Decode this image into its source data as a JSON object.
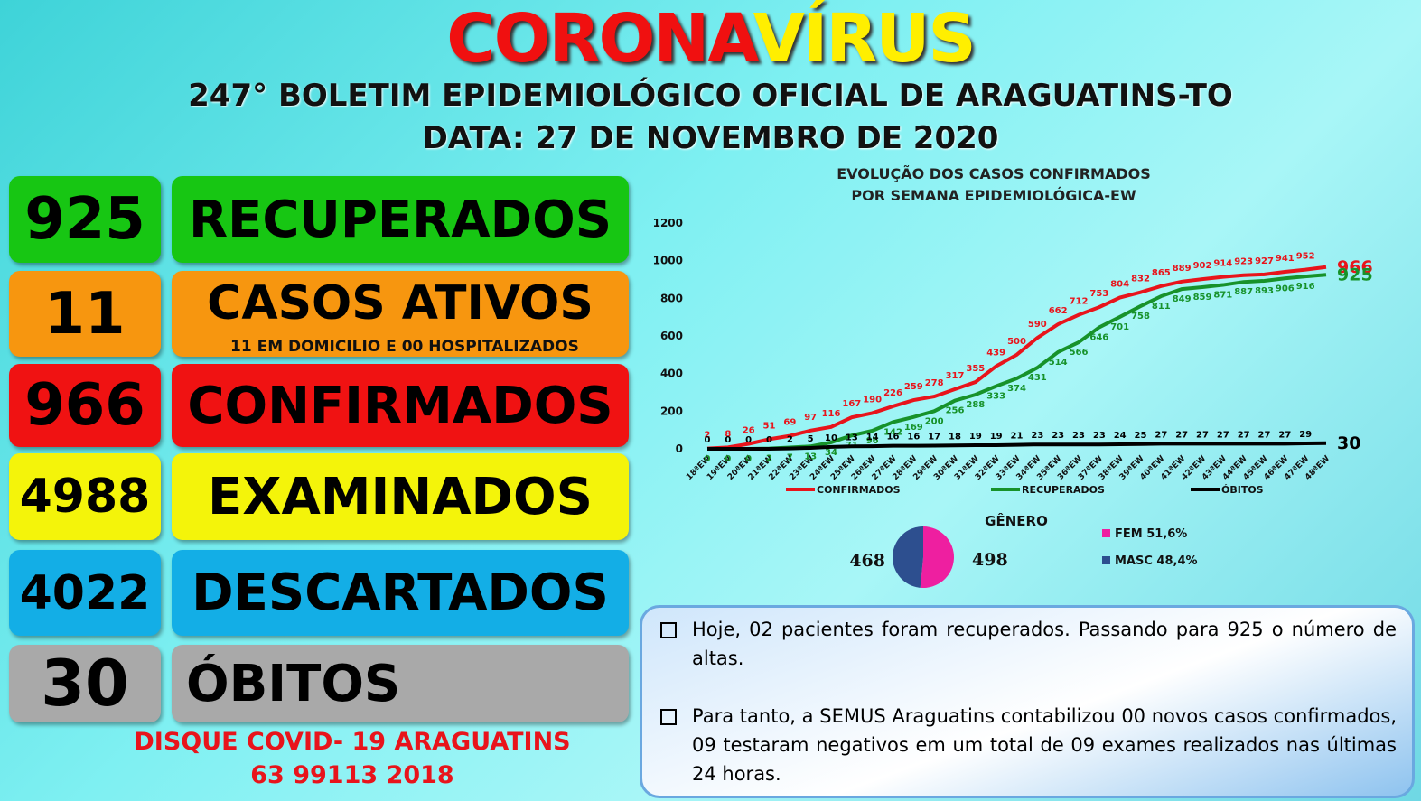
{
  "header": {
    "title_red": "CORONA",
    "title_yellow": "VÍRUS",
    "subtitle": "247° BOLETIM EPIDEMIOLÓGICO OFICIAL DE ARAGUATINS-TO",
    "date": "DATA: 27  DE NOVEMBRO DE 2020"
  },
  "stats": [
    {
      "value": 925,
      "label": "RECUPERADOS"
    },
    {
      "value": 11,
      "label": "CASOS ATIVOS",
      "note": "11 EM DOMICILIO E 00 HOSPITALIZADOS"
    },
    {
      "value": 966,
      "label": "CONFIRMADOS"
    },
    {
      "value": 4988,
      "label": "EXAMINADOS"
    },
    {
      "value": 4022,
      "label": "DESCARTADOS"
    },
    {
      "value": 30,
      "label": "ÓBITOS"
    }
  ],
  "hotline": {
    "line1": "DISQUE COVID- 19 ARAGUATINS",
    "line2": "63 99113 2018"
  },
  "notes": [
    "Hoje, 02 pacientes foram recuperados. Passando para 925 o número de altas.",
    "Para tanto, a SEMUS Araguatins contabilizou 00 novos casos confirmados, 09 testaram negativos em um total de 09 exames realizados nas últimas 24 horas."
  ],
  "chart_data": [
    {
      "type": "line",
      "title": "EVOLUÇÃO DOS CASOS CONFIRMADOS",
      "subtitle": "POR SEMANA EPIDEMIOLÓGICA-EW",
      "categories": [
        "18ªEW",
        "19ªEW",
        "20ªEW",
        "21ªEW",
        "22ªEW",
        "23ªEW",
        "24ªEW",
        "25ªEW",
        "26ªEW",
        "27ªEW",
        "28ªEW",
        "29ªEW",
        "30ªEW",
        "31ªEW",
        "32ªEW",
        "33ªEW",
        "34ªEW",
        "35ªEW",
        "36ªEW",
        "37ªEW",
        "38ªEW",
        "39ªEW",
        "40ªEW",
        "41ªEW",
        "42ªEW",
        "43ªEW",
        "44ªEW",
        "45ªEW",
        "46ªEW",
        "47ªEW",
        "48ªEW"
      ],
      "series": [
        {
          "name": "CONFIRMADOS",
          "color": "#e8141b",
          "values": [
            2,
            8,
            26,
            51,
            69,
            97,
            116,
            167,
            190,
            226,
            259,
            278,
            317,
            355,
            439,
            500,
            590,
            662,
            712,
            753,
            804,
            832,
            865,
            889,
            902,
            914,
            923,
            927,
            941,
            952,
            966
          ]
        },
        {
          "name": "RECUPERADOS",
          "color": "#17922a",
          "values": [
            0,
            0,
            0,
            2,
            7,
            13,
            34,
            71,
            96,
            142,
            169,
            200,
            256,
            288,
            333,
            374,
            431,
            514,
            566,
            646,
            701,
            758,
            811,
            849,
            859,
            871,
            887,
            893,
            906,
            916,
            925
          ]
        },
        {
          "name": "ÓBITOS",
          "color": "#000000",
          "values": [
            0,
            0,
            0,
            0,
            2,
            5,
            10,
            13,
            14,
            16,
            16,
            17,
            18,
            19,
            19,
            21,
            23,
            23,
            23,
            23,
            24,
            25,
            27,
            27,
            27,
            27,
            27,
            27,
            27,
            29,
            30
          ]
        }
      ],
      "ylim": [
        0,
        1200
      ],
      "yticks": [
        0,
        200,
        400,
        600,
        800,
        1000,
        1200
      ],
      "legend": "bottom"
    },
    {
      "type": "pie",
      "title": "GÊNERO",
      "categories": [
        "FEM  51,6%",
        "MASC 48,4%"
      ],
      "values": [
        498,
        468
      ],
      "colors": [
        "#ee1fa0",
        "#2d4f8f"
      ]
    }
  ]
}
